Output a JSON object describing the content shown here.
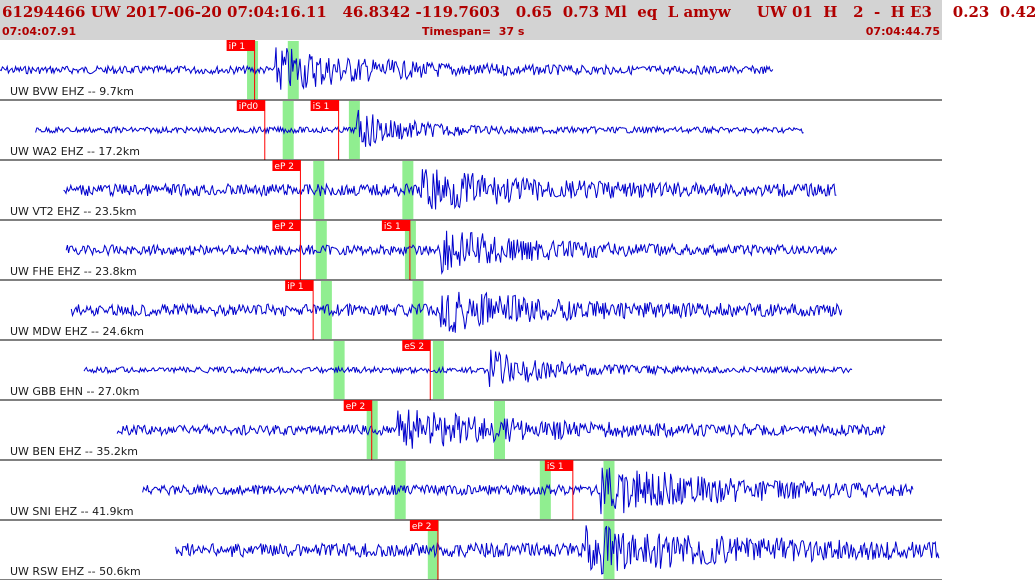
{
  "header": {
    "event_line": "61294466 UW 2017-06-20 07:04:16.11   46.8342 -119.7603   0.65  0.73 Ml  eq  L amyw     UW 01  H   2  -  H E3    0.23  0.42",
    "start_time": "07:04:07.91",
    "timespan": "Timespan=  37 s",
    "end_time": "07:04:44.75"
  },
  "colors": {
    "header_bg": "#d3d3d3",
    "header_text": "#b00000",
    "trace": "#0000cc",
    "pick_flag": "#ff0000",
    "pick_window": "#90ee90",
    "separator": "#000000"
  },
  "traces": [
    {
      "label": "UW BVW EHZ -- 9.7km",
      "start_s": 0.0,
      "end_s": 30.4,
      "amp": 4,
      "burst_s": 10.8,
      "burst_amp": 22,
      "burst_len_s": 6.0,
      "windows_s": [
        9.9,
        11.5
      ],
      "picks": [
        {
          "label": "iP 1",
          "t_s": 10.0
        }
      ]
    },
    {
      "label": "UW WA2 EHZ -- 17.2km",
      "start_s": 1.4,
      "end_s": 31.6,
      "amp": 3,
      "burst_s": 14.0,
      "burst_amp": 18,
      "burst_len_s": 3.5,
      "windows_s": [
        11.3,
        13.9
      ],
      "picks": [
        {
          "label": "iPd0",
          "t_s": 10.4
        },
        {
          "label": "iS 1",
          "t_s": 13.3
        }
      ]
    },
    {
      "label": "UW VT2 EHZ -- 23.5km",
      "start_s": 2.5,
      "end_s": 32.9,
      "amp": 6,
      "burst_s": 16.5,
      "burst_amp": 20,
      "burst_len_s": 6.0,
      "windows_s": [
        12.5,
        16.0
      ],
      "picks": [
        {
          "label": "eP 2",
          "t_s": 11.8
        }
      ]
    },
    {
      "label": "UW FHE EHZ -- 23.8km",
      "start_s": 2.6,
      "end_s": 32.9,
      "amp": 5,
      "burst_s": 17.2,
      "burst_amp": 22,
      "burst_len_s": 5.0,
      "windows_s": [
        12.6,
        16.1
      ],
      "picks": [
        {
          "label": "eP 2",
          "t_s": 11.8
        },
        {
          "label": "iS 1",
          "t_s": 16.1
        }
      ]
    },
    {
      "label": "UW MDW EHZ -- 24.6km",
      "start_s": 2.8,
      "end_s": 33.1,
      "amp": 6,
      "burst_s": 17.3,
      "burst_amp": 20,
      "burst_len_s": 6.0,
      "windows_s": [
        12.8,
        16.4
      ],
      "picks": [
        {
          "label": "iP 1",
          "t_s": 12.3
        }
      ]
    },
    {
      "label": "UW GBB EHN -- 27.0km",
      "start_s": 3.3,
      "end_s": 33.5,
      "amp": 3,
      "burst_s": 19.2,
      "burst_amp": 18,
      "burst_len_s": 4.0,
      "windows_s": [
        13.3,
        17.2
      ],
      "picks": [
        {
          "label": "eS 2",
          "t_s": 16.9
        }
      ]
    },
    {
      "label": "UW BEN EHZ -- 35.2km",
      "start_s": 4.6,
      "end_s": 34.8,
      "amp": 5,
      "burst_s": 15.6,
      "burst_amp": 18,
      "burst_len_s": 8.0,
      "windows_s": [
        14.6,
        19.6
      ],
      "picks": [
        {
          "label": "eP 2",
          "t_s": 14.6
        }
      ]
    },
    {
      "label": "UW SNI EHZ -- 41.9km",
      "start_s": 5.6,
      "end_s": 35.9,
      "amp": 5,
      "burst_s": 23.6,
      "burst_amp": 22,
      "burst_len_s": 8.0,
      "windows_s": [
        15.7,
        21.4,
        23.9
      ],
      "picks": [
        {
          "label": "iS 1",
          "t_s": 22.5
        }
      ]
    },
    {
      "label": "UW RSW EHZ -- 50.6km",
      "start_s": 6.9,
      "end_s": 37.0,
      "amp": 7,
      "burst_s": 23.0,
      "burst_amp": 20,
      "burst_len_s": 10.0,
      "windows_s": [
        17.0,
        23.9
      ],
      "picks": [
        {
          "label": "eP 2",
          "t_s": 17.2
        }
      ]
    }
  ]
}
